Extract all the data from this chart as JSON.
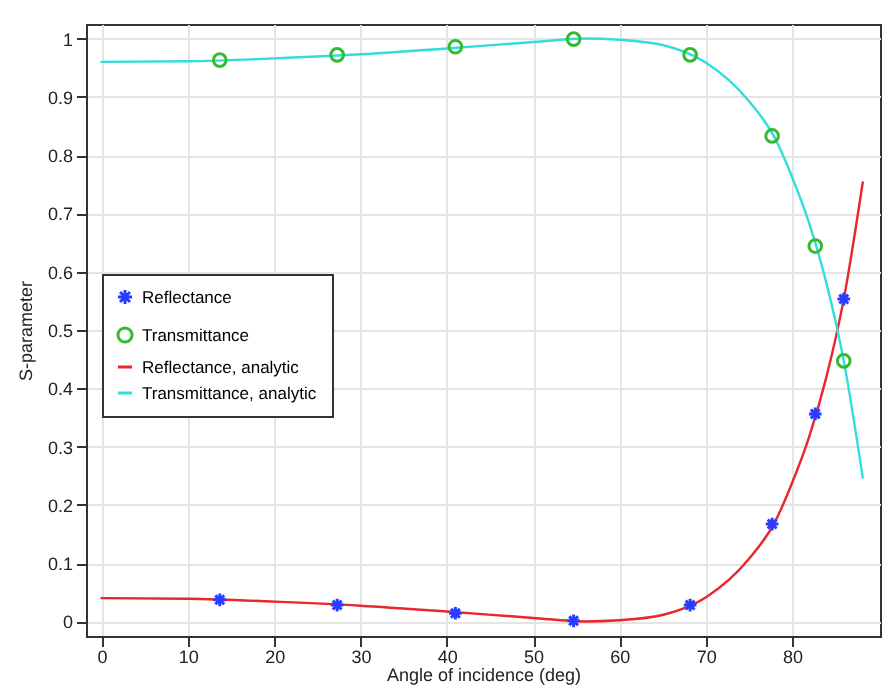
{
  "chart_data": {
    "type": "line",
    "xlabel": "Angle of incidence (deg)",
    "ylabel": "S-parameter",
    "xlim": [
      -1.8,
      90.2
    ],
    "ylim": [
      -0.025,
      1.025
    ],
    "xticks": [
      0,
      10,
      20,
      30,
      40,
      50,
      60,
      70,
      80
    ],
    "yticks": [
      0,
      0.1,
      0.2,
      0.3,
      0.4,
      0.5,
      0.6,
      0.7,
      0.8,
      0.9,
      1
    ],
    "grid": true,
    "legend": "left",
    "series": [
      {
        "name": "Reflectance",
        "type": "scatter",
        "marker": "cross",
        "color": "#2a3cff",
        "x": [
          13.7,
          27.3,
          41,
          54.7,
          68.2,
          77.7,
          82.7,
          86
        ],
        "values": [
          0.037,
          0.028,
          0.014,
          0.001,
          0.028,
          0.167,
          0.356,
          0.553
        ]
      },
      {
        "name": "Transmittance",
        "type": "scatter",
        "marker": "circle",
        "color": "#33bb33",
        "x": [
          13.7,
          27.3,
          41,
          54.7,
          68.2,
          77.7,
          82.7,
          86
        ],
        "values": [
          0.963,
          0.972,
          0.986,
          0.999,
          0.972,
          0.833,
          0.644,
          0.447
        ]
      },
      {
        "name": "Reflectance, analytic",
        "type": "line",
        "marker": "none",
        "color": "#e8262b",
        "x": [
          0,
          10,
          20,
          30,
          40,
          50,
          56,
          60,
          65,
          70,
          75,
          78,
          80,
          82,
          84,
          86,
          88.2
        ],
        "values": [
          0.04,
          0.039,
          0.034,
          0.027,
          0.017,
          0.006,
          0,
          0.002,
          0.011,
          0.041,
          0.107,
          0.17,
          0.237,
          0.317,
          0.42,
          0.553,
          0.753
        ]
      },
      {
        "name": "Transmittance, analytic",
        "type": "line",
        "marker": "none",
        "color": "#33dddd",
        "x": [
          0,
          10,
          20,
          30,
          40,
          50,
          56,
          60,
          65,
          70,
          75,
          78,
          80,
          82,
          84,
          86,
          88.2
        ],
        "values": [
          0.96,
          0.961,
          0.966,
          0.973,
          0.983,
          0.994,
          1,
          0.998,
          0.989,
          0.959,
          0.893,
          0.83,
          0.763,
          0.683,
          0.58,
          0.447,
          0.247
        ]
      }
    ]
  }
}
